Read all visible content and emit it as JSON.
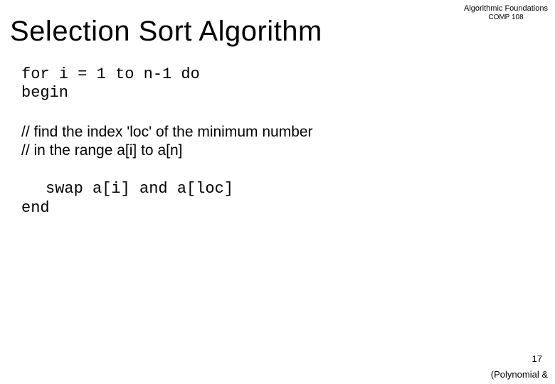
{
  "header": {
    "line1": "Algorithmic Foundations",
    "line2": "COMP 108"
  },
  "title": "Selection Sort Algorithm",
  "code": {
    "line1": "for i = 1 to n-1 do",
    "line2": "begin",
    "comment1": "// find the index 'loc' of the minimum number",
    "comment2": "// in the range a[i] to a[n]",
    "line3": "swap a[i] and a[loc]",
    "line4": "end"
  },
  "page_number": "17",
  "footer": "(Polynomial &",
  "colors": {
    "text": "#000000",
    "background": "#ffffff"
  },
  "fonts": {
    "title_size": 40,
    "mono_size": 22,
    "sans_size": 21,
    "header_size": 11
  }
}
